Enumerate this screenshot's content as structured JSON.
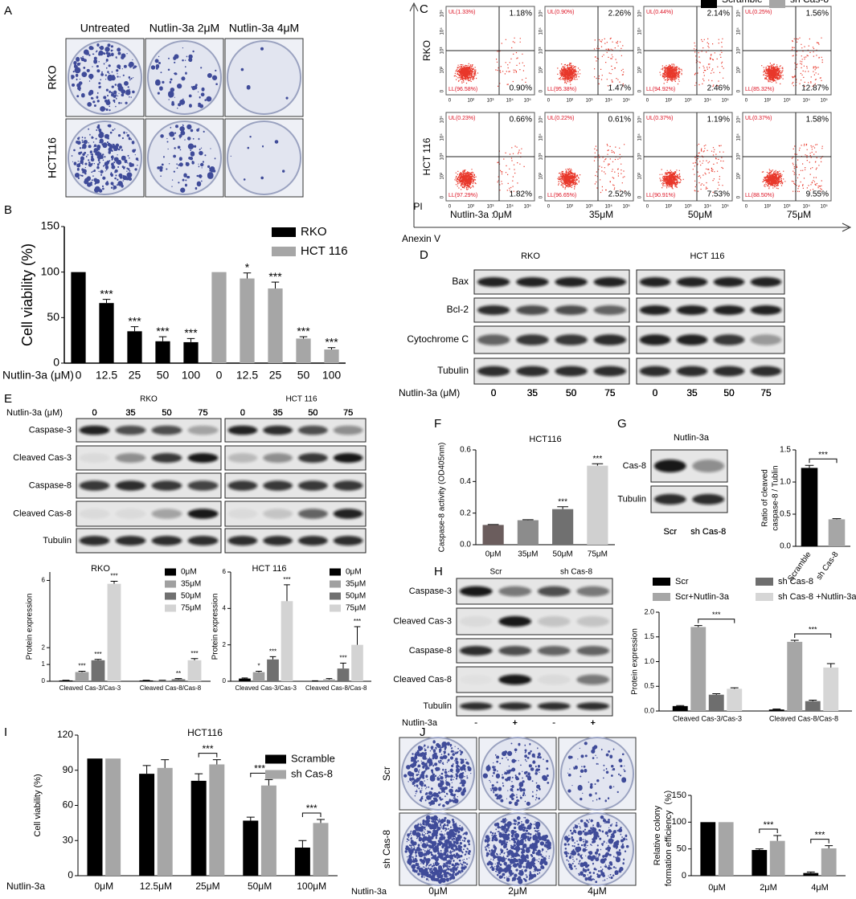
{
  "panels": [
    "A",
    "B",
    "C",
    "D",
    "E",
    "F",
    "G",
    "H",
    "I",
    "J"
  ],
  "colonies": {
    "A": {
      "columns": [
        "Untreated",
        "Nutlin-3a 2μM",
        "Nutlin-3a 4μM"
      ],
      "rows": [
        "RKO",
        "HCT116"
      ]
    },
    "J": {
      "rows": [
        "Scr",
        "sh Cas-8"
      ],
      "columns": [
        "0μM",
        "2μM",
        "4μM"
      ],
      "condition": "Nutlin-3a"
    }
  },
  "flow": {
    "rows": [
      "RKO",
      "HCT 116"
    ],
    "ylabel": "PI",
    "xlabel": "Anexin V",
    "condition": "Nutlin-3a :",
    "doses": [
      "0μM",
      "35μM",
      "50μM",
      "75μM"
    ],
    "ticks": [
      "0",
      "10²",
      "10³",
      "10⁴",
      "10⁵"
    ],
    "quadrants": [
      [
        {
          "UL": "UL(1.33%)",
          "UR": "1.18%",
          "LL": "LL(96.58%)",
          "LR": "0.90%"
        },
        {
          "UL": "UL(0.90%)",
          "UR": "2.26%",
          "LL": "LL(95.38%)",
          "LR": "1.47%"
        },
        {
          "UL": "UL(0.44%)",
          "UR": "2.14%",
          "LL": "LL(94.92%)",
          "LR": "2.46%"
        },
        {
          "UL": "UL(0.25%)",
          "UR": "1.56%",
          "LL": "LL(85.32%)",
          "LR": "12.87%"
        }
      ],
      [
        {
          "UL": "UL(0.23%)",
          "UR": "0.66%",
          "LL": "LL(97.29%)",
          "LR": "1.82%"
        },
        {
          "UL": "UL(0.22%)",
          "UR": "0.61%",
          "LL": "LL(96.65%)",
          "LR": "2.52%"
        },
        {
          "UL": "UL(0.37%)",
          "UR": "1.19%",
          "LL": "LL(90.91%)",
          "LR": "7.53%"
        },
        {
          "UL": "UL(0.37%)",
          "UR": "1.58%",
          "LL": "LL(88.50%)",
          "LR": "9.55%"
        }
      ]
    ]
  },
  "blots": {
    "D": {
      "groups": [
        "RKO",
        "HCT 116"
      ],
      "rows": [
        "Bax",
        "Bcl-2",
        "Cytochrome C",
        "Tubulin"
      ],
      "xlabel": "Nutlin-3a (μM)",
      "lanes": [
        "0",
        "35",
        "50",
        "75"
      ]
    },
    "E": {
      "groups": [
        "RKO",
        "HCT 116"
      ],
      "rows": [
        "Caspase-3",
        "Cleaved Cas-3",
        "Caspase-8",
        "Cleaved Cas-8",
        "Tubulin"
      ],
      "xlabel": "Nutlin-3a (μM)",
      "lanes": [
        "0",
        "35",
        "50",
        "75"
      ]
    },
    "G": {
      "title": "Nutlin-3a",
      "rows": [
        "Cas-8",
        "Tubulin"
      ],
      "lanes": [
        "Scr",
        "sh Cas-8"
      ]
    },
    "H": {
      "groups": [
        "Scr",
        "sh Cas-8"
      ],
      "rows": [
        "Caspase-3",
        "Cleaved Cas-3",
        "Caspase-8",
        "Cleaved Cas-8",
        "Tubulin"
      ],
      "xlabel": "Nutlin-3a",
      "lanes": [
        "-",
        "+",
        "-",
        "+"
      ]
    }
  },
  "chart_data": [
    {
      "type": "bar",
      "ylabel": "Cell viability (%)",
      "xlabel": "Nutlin-3a (μM)",
      "categories": [
        "0",
        "12.5",
        "25",
        "50",
        "100",
        "0",
        "12.5",
        "25",
        "50",
        "100"
      ],
      "series": [
        {
          "name": "RKO",
          "color": "#000000",
          "values": [
            100,
            66,
            35,
            24,
            23,
            null,
            null,
            null,
            null,
            null
          ],
          "errors": [
            null,
            4,
            5,
            5,
            4,
            null,
            null,
            null,
            null,
            null
          ]
        },
        {
          "name": "HCT 116",
          "color": "#a6a6a6",
          "values": [
            null,
            null,
            null,
            null,
            null,
            100,
            93,
            82,
            27,
            15
          ],
          "errors": [
            null,
            null,
            null,
            null,
            null,
            null,
            6,
            7,
            2,
            2
          ]
        }
      ],
      "ylim": [
        0,
        150
      ],
      "yticks": [
        0,
        50,
        100,
        150
      ],
      "annotations": [
        {
          "text": "***",
          "at": [
            1,
            0
          ]
        },
        {
          "text": "***",
          "at": [
            2,
            0
          ]
        },
        {
          "text": "***",
          "at": [
            3,
            0
          ]
        },
        {
          "text": "***",
          "at": [
            4,
            0
          ]
        },
        {
          "text": "*",
          "at": [
            6,
            1
          ]
        },
        {
          "text": "***",
          "at": [
            7,
            1
          ]
        },
        {
          "text": "***",
          "at": [
            8,
            1
          ]
        },
        {
          "text": "***",
          "at": [
            9,
            1
          ]
        }
      ]
    },
    {
      "type": "bar",
      "title": "HCT116",
      "ylabel": "Caspase-8 activity (OD405nm)",
      "categories": [
        "0μM",
        "35μM",
        "50μM",
        "75μM"
      ],
      "values": [
        0.125,
        0.155,
        0.225,
        0.5
      ],
      "errors": [
        0.003,
        0.003,
        0.015,
        0.012
      ],
      "colors": [
        "#6b5d5d",
        "#8c8c8c",
        "#707070",
        "#d0d0d0"
      ],
      "ylim": [
        0,
        0.6
      ],
      "yticks": [
        {
          "value": 0,
          "label": "0.0"
        },
        0.2,
        0.4,
        0.6
      ],
      "annotations": [
        {
          "text": "***",
          "at": [
            2,
            0
          ]
        },
        {
          "text": "***",
          "at": [
            3,
            0
          ]
        }
      ]
    },
    {
      "type": "bar",
      "ylabel": [
        "Ratio of cleaved",
        "caspase-8 / Tublin"
      ],
      "categories": [
        "Scramble",
        "sh Cas-8"
      ],
      "values": [
        1.22,
        0.42
      ],
      "errors": [
        0.04,
        0.01
      ],
      "colors": [
        "#000000",
        "#a6a6a6"
      ],
      "ylim": [
        0,
        1.5
      ],
      "yticks": [
        {
          "value": 0,
          "label": "0.0"
        },
        0.5,
        {
          "value": 1,
          "label": "1.0"
        },
        1.5
      ],
      "brackets": [
        {
          "text": "***",
          "from": [
            0,
            0
          ],
          "to": [
            1,
            0
          ]
        }
      ]
    },
    {
      "type": "bar",
      "title": "RKO",
      "ylabel": "Protein expression",
      "categories": [
        "Cleaved Cas-3/Cas-3",
        "Cleaved Cas-8/Cas-8"
      ],
      "series": [
        {
          "name": "0μM",
          "color": "#000000",
          "values": [
            0.05,
            0.05
          ],
          "errors": [
            0.01,
            0.01
          ]
        },
        {
          "name": "35μM",
          "color": "#a0a0a0",
          "values": [
            0.55,
            0.05
          ],
          "errors": [
            0.05,
            0.01
          ]
        },
        {
          "name": "50μM",
          "color": "#707070",
          "values": [
            1.25,
            0.12
          ],
          "errors": [
            0.05,
            0.04
          ]
        },
        {
          "name": "75μM",
          "color": "#d3d3d3",
          "values": [
            5.8,
            1.25
          ],
          "errors": [
            0.15,
            0.1
          ]
        }
      ],
      "ylim": [
        0,
        6.5
      ],
      "yticks": [
        0,
        1,
        2,
        6
      ],
      "annotations": [
        {
          "text": "***",
          "at": [
            0,
            1
          ]
        },
        {
          "text": "***",
          "at": [
            0,
            2
          ]
        },
        {
          "text": "***",
          "at": [
            0,
            3
          ]
        },
        {
          "text": "**",
          "at": [
            1,
            2
          ]
        },
        {
          "text": "***",
          "at": [
            1,
            3
          ]
        }
      ]
    },
    {
      "type": "bar",
      "title": "HCT 116",
      "ylabel": "Protein expression",
      "categories": [
        "Cleaved Cas-3/Cas-3",
        "Cleaved Cas-8/Cas-8"
      ],
      "series": [
        {
          "name": "0μM",
          "color": "#000000",
          "values": [
            0.15,
            0.02
          ],
          "errors": [
            0.03,
            0.01
          ]
        },
        {
          "name": "35μM",
          "color": "#a0a0a0",
          "values": [
            0.5,
            0.1
          ],
          "errors": [
            0.05,
            0.05
          ]
        },
        {
          "name": "50μM",
          "color": "#707070",
          "values": [
            1.2,
            0.7
          ],
          "errors": [
            0.15,
            0.3
          ]
        },
        {
          "name": "75μM",
          "color": "#d3d3d3",
          "values": [
            4.4,
            2.0
          ],
          "errors": [
            0.9,
            1.0
          ]
        }
      ],
      "ylim": [
        0,
        6
      ],
      "yticks": [
        0,
        2,
        4,
        6
      ],
      "annotations": [
        {
          "text": "*",
          "at": [
            0,
            1
          ]
        },
        {
          "text": "***",
          "at": [
            0,
            2
          ]
        },
        {
          "text": "***",
          "at": [
            0,
            3
          ]
        },
        {
          "text": "***",
          "at": [
            1,
            2
          ]
        },
        {
          "text": "***",
          "at": [
            1,
            3
          ]
        }
      ]
    },
    {
      "type": "bar",
      "ylabel": "Protein expression",
      "categories": [
        "Cleaved Cas-3/Cas-3",
        "Cleaved Cas-8/Cas-8"
      ],
      "series": [
        {
          "name": "Scr",
          "color": "#000000",
          "values": [
            0.1,
            0.03
          ],
          "errors": [
            0.01,
            0.01
          ]
        },
        {
          "name": "Scr+Nutlin-3a",
          "color": "#a6a6a6",
          "values": [
            1.7,
            1.4
          ],
          "errors": [
            0.03,
            0.03
          ]
        },
        {
          "name": "sh Cas-8",
          "color": "#6e6e6e",
          "values": [
            0.33,
            0.2
          ],
          "errors": [
            0.02,
            0.02
          ]
        },
        {
          "name": "sh Cas-8 +Nutlin-3a",
          "color": "#d6d6d6",
          "values": [
            0.45,
            0.88
          ],
          "errors": [
            0.02,
            0.08
          ]
        }
      ],
      "ylim": [
        0,
        2
      ],
      "yticks": [
        {
          "value": 0,
          "label": "0.0"
        },
        0.5,
        {
          "value": 1,
          "label": "1.0"
        },
        1.5,
        {
          "value": 2,
          "label": "2.0"
        }
      ],
      "brackets": [
        {
          "text": "***",
          "from": [
            0,
            1
          ],
          "to": [
            0,
            3
          ]
        },
        {
          "text": "***",
          "from": [
            1,
            1
          ],
          "to": [
            1,
            3
          ]
        }
      ]
    },
    {
      "type": "bar",
      "title": "HCT116",
      "ylabel": "Cell viability (%)",
      "xlabel": "Nutlin-3a",
      "categories": [
        "0μM",
        "12.5μM",
        "25μM",
        "50μM",
        "100μM"
      ],
      "series": [
        {
          "name": "Scramble",
          "color": "#000000",
          "values": [
            100,
            87,
            81,
            47,
            24
          ],
          "errors": [
            null,
            7,
            6,
            3,
            6
          ]
        },
        {
          "name": "sh Cas-8",
          "color": "#a6a6a6",
          "values": [
            100,
            92,
            95,
            77,
            45
          ],
          "errors": [
            null,
            7,
            4,
            5,
            3
          ]
        }
      ],
      "ylim": [
        0,
        120
      ],
      "yticks": [
        0,
        30,
        60,
        90,
        120
      ],
      "brackets": [
        {
          "text": "***",
          "from": [
            2,
            0
          ],
          "to": [
            2,
            1
          ]
        },
        {
          "text": "***",
          "from": [
            3,
            0
          ],
          "to": [
            3,
            1
          ]
        },
        {
          "text": "***",
          "from": [
            4,
            0
          ],
          "to": [
            4,
            1
          ]
        }
      ]
    },
    {
      "type": "bar",
      "ylabel": [
        "Relative colony",
        "formation efficiency（%）"
      ],
      "categories": [
        "0μM",
        "2μM",
        "4μM"
      ],
      "series": [
        {
          "name": "Scramble",
          "color": "#000000",
          "values": [
            100,
            48,
            5
          ],
          "errors": [
            null,
            2,
            2
          ]
        },
        {
          "name": "sh Cas-8",
          "color": "#a6a6a6",
          "values": [
            100,
            65,
            51
          ],
          "errors": [
            null,
            10,
            5
          ]
        }
      ],
      "ylim": [
        0,
        150
      ],
      "yticks": [
        0,
        50,
        100,
        150
      ],
      "brackets": [
        {
          "text": "***",
          "from": [
            1,
            0
          ],
          "to": [
            1,
            1
          ]
        },
        {
          "text": "***",
          "from": [
            2,
            0
          ],
          "to": [
            2,
            1
          ]
        }
      ]
    }
  ]
}
